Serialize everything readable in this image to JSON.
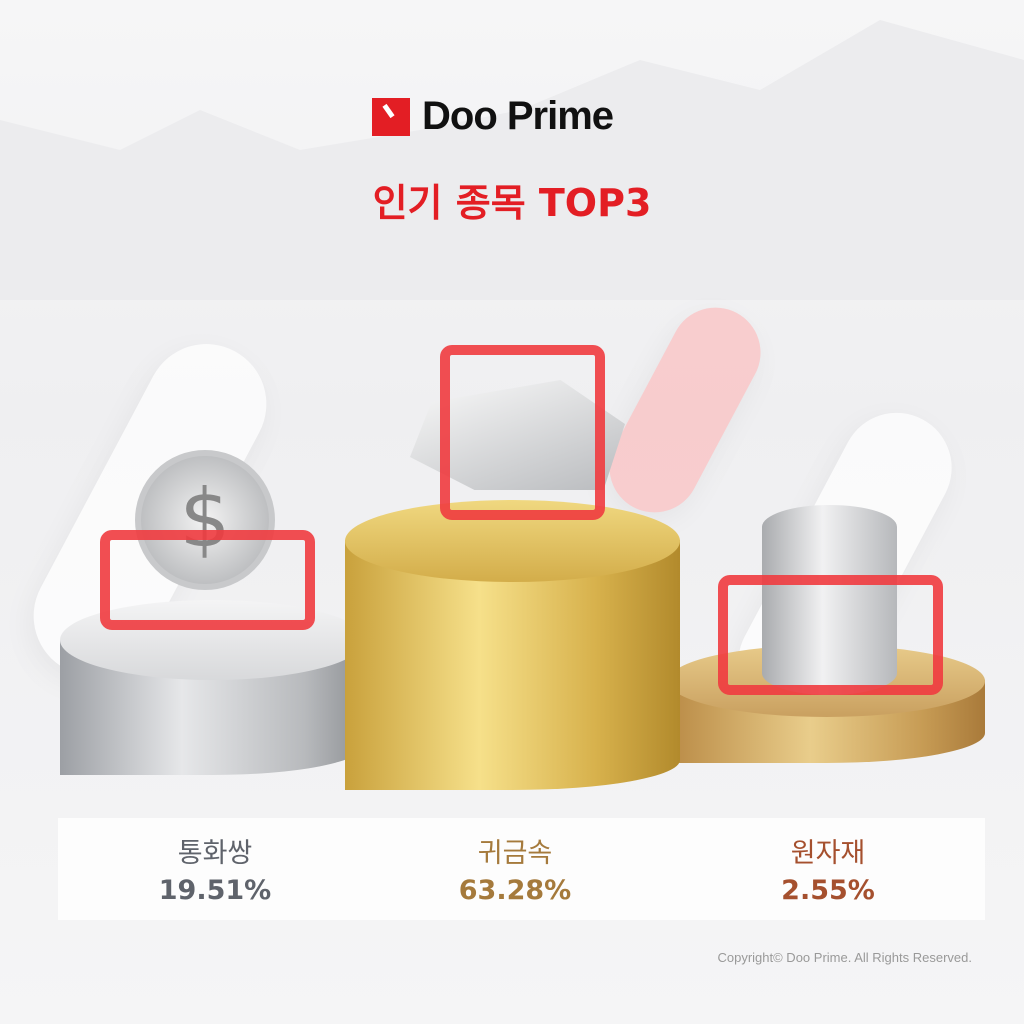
{
  "brand": {
    "name": "Doo Prime",
    "color": "#e31e24"
  },
  "title": "인기 종목 TOP3",
  "podiums": [
    {
      "category": "통화쌍",
      "percent": "19.51%",
      "color": "#5f636b",
      "rank": 2,
      "icon": "silver-coins-icon"
    },
    {
      "category": "귀금속",
      "percent": "63.28%",
      "color": "#a57a3c",
      "rank": 1,
      "icon": "silver-bars-icon"
    },
    {
      "category": "원자재",
      "percent": "2.55%",
      "color": "#a5502e",
      "rank": 3,
      "icon": "oil-barrel-icon"
    }
  ],
  "copyright": "Copyright© Doo Prime. All Rights Reserved."
}
